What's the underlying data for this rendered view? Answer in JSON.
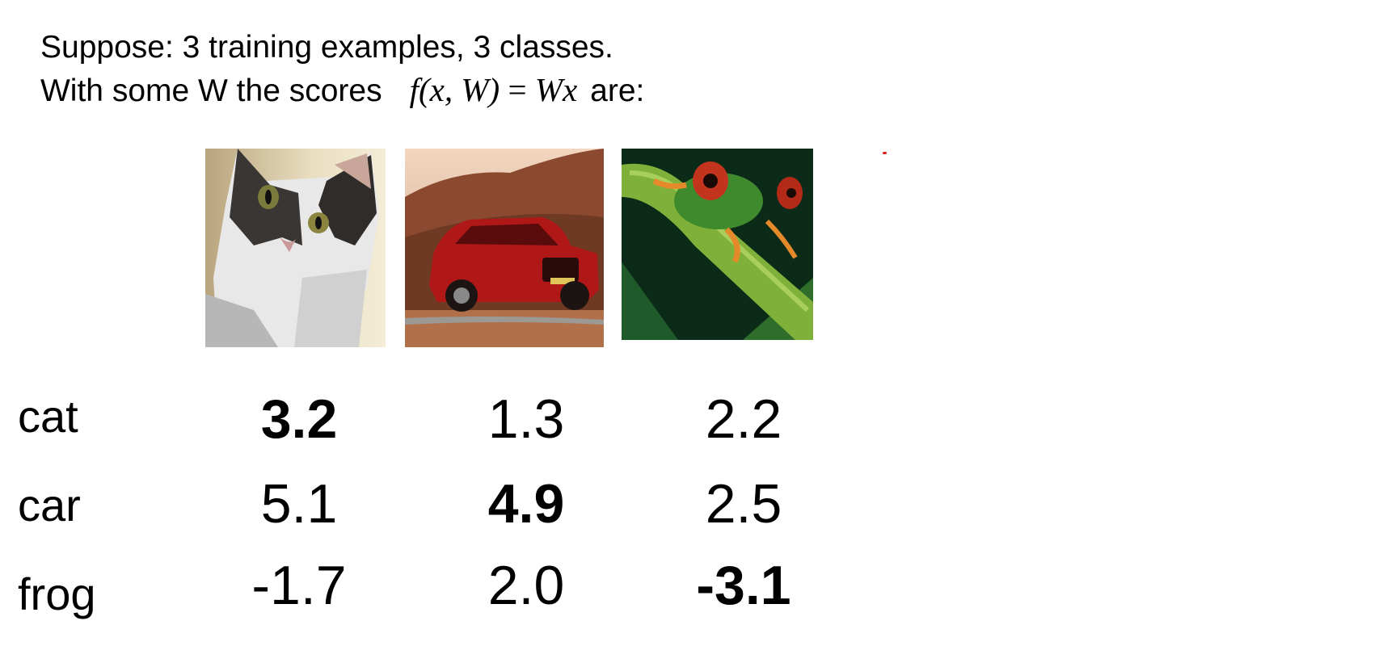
{
  "intro": {
    "line1": "Suppose: 3 training examples, 3 classes.",
    "line2_prefix": "With some W the scores",
    "formula": {
      "f": "f",
      "args": "(x, W)",
      "equals": " = ",
      "rhs": "Wx"
    },
    "line2_suffix": "are:"
  },
  "images": [
    {
      "name": "cat-image",
      "subject": "cat"
    },
    {
      "name": "car-image",
      "subject": "car"
    },
    {
      "name": "frog-image",
      "subject": "frog"
    }
  ],
  "classes": [
    "cat",
    "car",
    "frog"
  ],
  "scores": [
    [
      "3.2",
      "1.3",
      "2.2"
    ],
    [
      "5.1",
      "4.9",
      "2.5"
    ],
    [
      "-1.7",
      "2.0",
      "-3.1"
    ]
  ],
  "bold_cells": [
    [
      0,
      0
    ],
    [
      1,
      1
    ],
    [
      2,
      2
    ]
  ],
  "colors": {
    "text": "#000000",
    "background": "#ffffff",
    "dot": "#dd2222"
  }
}
